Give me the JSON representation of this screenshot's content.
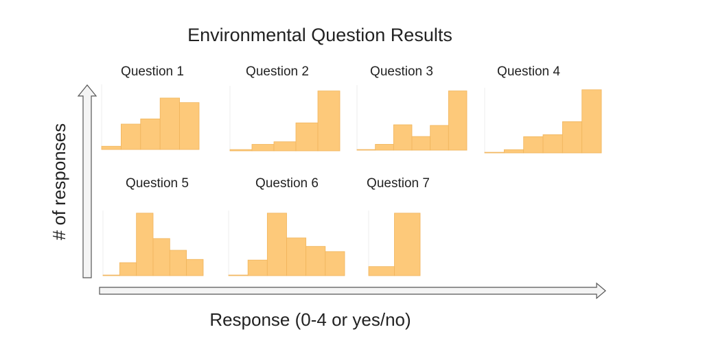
{
  "title": "Environmental Question Results",
  "xlabel": "Response (0-4 or yes/no)",
  "ylabel": "# of responses",
  "chart_data": [
    {
      "type": "bar",
      "title": "Question 1",
      "values": [
        5,
        39,
        47,
        79,
        72
      ],
      "ylim": [
        0,
        100
      ],
      "color": "#fdc97a"
    },
    {
      "type": "bar",
      "title": "Question 2",
      "values": [
        2,
        10,
        14,
        43,
        92
      ],
      "ylim": [
        0,
        100
      ],
      "color": "#fdc97a"
    },
    {
      "type": "bar",
      "title": "Question 3",
      "values": [
        1,
        9,
        39,
        21,
        38,
        91
      ],
      "ylim": [
        0,
        100
      ],
      "color": "#fdc97a"
    },
    {
      "type": "bar",
      "title": "Question 4",
      "values": [
        1,
        5,
        25,
        28,
        48,
        97
      ],
      "ylim": [
        0,
        100
      ],
      "color": "#fdc97a"
    },
    {
      "type": "bar",
      "title": "Question 5",
      "values": [
        1,
        20,
        96,
        57,
        39,
        25
      ],
      "ylim": [
        0,
        100
      ],
      "color": "#fdc97a"
    },
    {
      "type": "bar",
      "title": "Question 6",
      "values": [
        1,
        24,
        96,
        58,
        45,
        37
      ],
      "ylim": [
        0,
        100
      ],
      "color": "#fdc97a"
    },
    {
      "type": "bar",
      "title": "Question 7",
      "values": [
        14,
        96
      ],
      "ylim": [
        0,
        100
      ],
      "color": "#fdc97a"
    }
  ]
}
